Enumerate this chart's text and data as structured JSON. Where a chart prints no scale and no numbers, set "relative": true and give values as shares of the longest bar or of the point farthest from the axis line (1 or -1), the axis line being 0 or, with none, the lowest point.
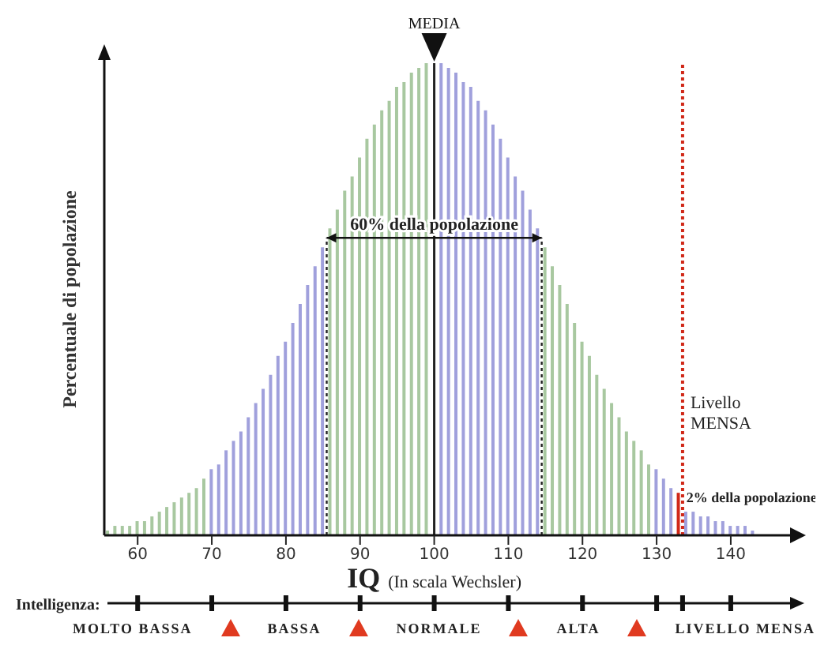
{
  "chart_data": {
    "type": "bar",
    "relative": true,
    "ylabel": "Percentuale di popolazione",
    "xlabel": "IQ (In scala Wechsler)",
    "xlim": [
      55.5,
      148
    ],
    "xticks": [
      60,
      70,
      80,
      90,
      100,
      110,
      120,
      130,
      140
    ],
    "series": [
      {
        "color": "#a8c8a0",
        "x": [
          56,
          57,
          58,
          59,
          60,
          61,
          62,
          63,
          64,
          65,
          66,
          67,
          68,
          69
        ],
        "values": [
          0.01,
          0.02,
          0.02,
          0.02,
          0.03,
          0.03,
          0.04,
          0.05,
          0.06,
          0.07,
          0.08,
          0.09,
          0.1,
          0.12
        ]
      },
      {
        "color": "#a0a0dc",
        "x": [
          70,
          71,
          72,
          73,
          74,
          75,
          76,
          77,
          78,
          79,
          80,
          81,
          82,
          83,
          84,
          85
        ],
        "values": [
          0.14,
          0.15,
          0.18,
          0.2,
          0.22,
          0.25,
          0.28,
          0.31,
          0.34,
          0.38,
          0.41,
          0.45,
          0.49,
          0.53,
          0.57,
          0.61
        ]
      },
      {
        "color": "#a8c8a0",
        "x": [
          86,
          87,
          88,
          89,
          90,
          91,
          92,
          93,
          94,
          95,
          96,
          97,
          98,
          99
        ],
        "values": [
          0.65,
          0.69,
          0.73,
          0.76,
          0.8,
          0.84,
          0.87,
          0.9,
          0.92,
          0.95,
          0.96,
          0.98,
          0.99,
          1
        ]
      },
      {
        "color": "#a0a0dc",
        "x": [
          101,
          102,
          103,
          104,
          105,
          106,
          107,
          108,
          109,
          110,
          111,
          112,
          113,
          114
        ],
        "values": [
          1,
          0.99,
          0.98,
          0.96,
          0.95,
          0.92,
          0.9,
          0.87,
          0.84,
          0.8,
          0.76,
          0.73,
          0.69,
          0.65
        ]
      },
      {
        "color": "#a8c8a0",
        "x": [
          115,
          116,
          117,
          118,
          119,
          120,
          121,
          122,
          123,
          124,
          125,
          126,
          127,
          128,
          129
        ],
        "values": [
          0.61,
          0.57,
          0.53,
          0.49,
          0.45,
          0.41,
          0.38,
          0.34,
          0.31,
          0.28,
          0.25,
          0.22,
          0.2,
          0.18,
          0.15
        ]
      },
      {
        "color": "#a0a0dc",
        "x": [
          130,
          131,
          132,
          134,
          135,
          136,
          137,
          138,
          139,
          140,
          141,
          142,
          143
        ],
        "values": [
          0.14,
          0.12,
          0.1,
          0.05,
          0.05,
          0.04,
          0.04,
          0.03,
          0.03,
          0.02,
          0.02,
          0.02,
          0.01
        ]
      },
      {
        "color": "#d02818",
        "x": [
          133
        ],
        "values": [
          0.09
        ]
      }
    ],
    "ref_lines": [
      {
        "axis": "x",
        "value": 100,
        "label": "MEDIA",
        "color": "#222222",
        "line_style": "solid"
      },
      {
        "axis": "x",
        "value": 85.5,
        "color": "#222222",
        "line_style": "dotted"
      },
      {
        "axis": "x",
        "value": 114.5,
        "color": "#222222",
        "line_style": "dotted"
      },
      {
        "axis": "x",
        "value": 133.5,
        "label": "Livello MENSA",
        "color": "#d02818",
        "line_style": "dotted"
      }
    ],
    "annotations": [
      {
        "text": "60% della popolazione",
        "x": 100,
        "y": 0.63
      },
      {
        "text": "2% della popolazione",
        "x": 134,
        "y": 0.07
      },
      "Intelligenza:",
      "MOLTO BASSA",
      "BASSA",
      "NORMALE",
      "ALTA",
      "LIVELLO MENSA"
    ]
  }
}
